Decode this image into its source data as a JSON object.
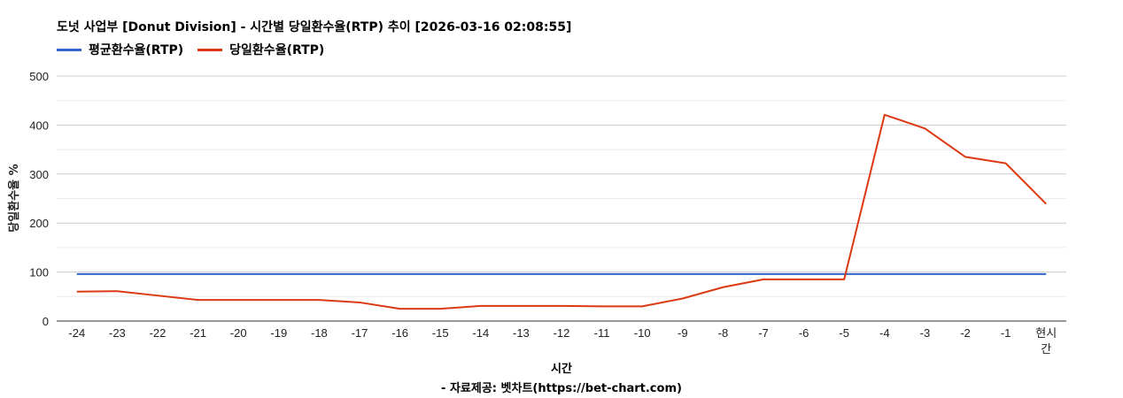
{
  "title": "도넛 사업부 [Donut Division] - 시간별 당일환수율(RTP) 추이 [2026-03-16 02:08:55]",
  "footer": "- 자료제공: 벳차트(https://bet-chart.com)",
  "colors": {
    "avg": "#3366cc",
    "daily": "#dc3912",
    "grid": "#cccccc",
    "minorGrid": "#ebebeb",
    "axis": "#333333"
  },
  "chart_data": {
    "type": "line",
    "title": "도넛 사업부 [Donut Division] - 시간별 당일환수율(RTP) 추이 [2026-03-16 02:08:55]",
    "xlabel": "시간",
    "ylabel": "당일환수율 %",
    "categories": [
      "-24",
      "-23",
      "-22",
      "-21",
      "-20",
      "-19",
      "-18",
      "-17",
      "-16",
      "-15",
      "-14",
      "-13",
      "-12",
      "-11",
      "-10",
      "-9",
      "-8",
      "-7",
      "-6",
      "-5",
      "-4",
      "-3",
      "-2",
      "-1",
      "현시간"
    ],
    "ylim": [
      0,
      500
    ],
    "yticks": [
      "0",
      "100",
      "200",
      "300",
      "400",
      "500"
    ],
    "grid": true,
    "legend_position": "top-left",
    "series": [
      {
        "name": "평균환수율(RTP)",
        "color": "#3366cc",
        "values": [
          96,
          96,
          96,
          96,
          96,
          96,
          96,
          96,
          96,
          96,
          96,
          96,
          96,
          96,
          96,
          96,
          96,
          96,
          96,
          96,
          96,
          96,
          96,
          96,
          96
        ]
      },
      {
        "name": "당일환수율(RTP)",
        "color": "#dc3912",
        "values": [
          60,
          61,
          52,
          43,
          43,
          43,
          43,
          38,
          25,
          25,
          31,
          31,
          31,
          30,
          30,
          46,
          69,
          85,
          85,
          85,
          421,
          393,
          335,
          322,
          239
        ]
      }
    ]
  }
}
